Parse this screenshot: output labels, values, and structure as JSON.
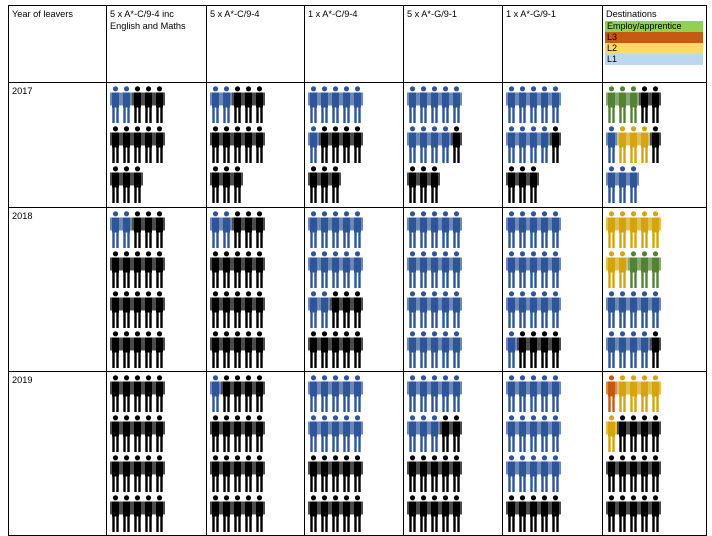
{
  "colors": {
    "blue": "#2e5597",
    "black": "#000000",
    "green": "#548235",
    "orange": "#c45a11",
    "gold": "#d4a40c"
  },
  "table": {
    "header": {
      "year": "Year of leavers",
      "columns": [
        "5 x A*-C/9-4 inc English and Maths",
        "5 x A*-C/9-4",
        "1 x A*-C/9-4",
        "5 x A*-G/9-1",
        "1 x A*-G/9-1"
      ],
      "destinations": {
        "title": "Destinations",
        "legend": [
          {
            "label": "Employ/apprentice",
            "color": "#92d050"
          },
          {
            "label": "L3",
            "color": "#c55a11"
          },
          {
            "label": "L2",
            "color": "#ffd966"
          },
          {
            "label": "L1",
            "color": "#bdd7ee"
          }
        ]
      }
    },
    "years": [
      {
        "year": "2017",
        "columns": [
          {
            "rows": [
              [
                "blue",
                "blue",
                "black",
                "black",
                "black"
              ],
              [
                "black",
                "black",
                "black",
                "black",
                "black"
              ],
              [
                "black",
                "black",
                "black"
              ]
            ]
          },
          {
            "rows": [
              [
                "blue",
                "blue",
                "black",
                "black",
                "black"
              ],
              [
                "black",
                "black",
                "black",
                "black",
                "black"
              ],
              [
                "black",
                "black",
                "black"
              ]
            ]
          },
          {
            "rows": [
              [
                "blue",
                "blue",
                "blue",
                "blue",
                "blue"
              ],
              [
                "blue",
                "black",
                "black",
                "black",
                "black"
              ],
              [
                "black",
                "black",
                "black"
              ]
            ]
          },
          {
            "rows": [
              [
                "blue",
                "blue",
                "blue",
                "blue",
                "blue"
              ],
              [
                "blue",
                "blue",
                "blue",
                "blue",
                "black"
              ],
              [
                "black",
                "black",
                "black"
              ]
            ]
          },
          {
            "rows": [
              [
                "blue",
                "blue",
                "blue",
                "blue",
                "blue"
              ],
              [
                "blue",
                "blue",
                "blue",
                "blue",
                "black"
              ],
              [
                "black",
                "black",
                "black"
              ]
            ]
          },
          {
            "rows": [
              [
                "green",
                "green",
                "green",
                "black",
                "black"
              ],
              [
                "blue",
                "gold",
                "gold",
                "gold",
                "black"
              ],
              [
                "blue",
                "blue",
                "blue"
              ]
            ]
          }
        ]
      },
      {
        "year": "2018",
        "columns": [
          {
            "rows": [
              [
                "blue",
                "blue",
                "black",
                "black",
                "black"
              ],
              [
                "black",
                "black",
                "black",
                "black",
                "black"
              ],
              [
                "black",
                "black",
                "black",
                "black",
                "black"
              ],
              [
                "black",
                "black",
                "black",
                "black",
                "black"
              ]
            ]
          },
          {
            "rows": [
              [
                "blue",
                "blue",
                "black",
                "black",
                "black"
              ],
              [
                "black",
                "black",
                "black",
                "black",
                "black"
              ],
              [
                "black",
                "black",
                "black",
                "black",
                "black"
              ],
              [
                "black",
                "black",
                "black",
                "black",
                "black"
              ]
            ]
          },
          {
            "rows": [
              [
                "blue",
                "blue",
                "blue",
                "blue",
                "blue"
              ],
              [
                "blue",
                "blue",
                "blue",
                "blue",
                "blue"
              ],
              [
                "blue",
                "blue",
                "black",
                "black",
                "black"
              ],
              [
                "black",
                "black",
                "black",
                "black",
                "black"
              ]
            ]
          },
          {
            "rows": [
              [
                "blue",
                "blue",
                "blue",
                "blue",
                "blue"
              ],
              [
                "blue",
                "blue",
                "blue",
                "blue",
                "blue"
              ],
              [
                "blue",
                "blue",
                "blue",
                "blue",
                "blue"
              ],
              [
                "blue",
                "blue",
                "blue",
                "blue",
                "blue"
              ]
            ]
          },
          {
            "rows": [
              [
                "blue",
                "blue",
                "blue",
                "blue",
                "blue"
              ],
              [
                "blue",
                "blue",
                "blue",
                "blue",
                "blue"
              ],
              [
                "blue",
                "blue",
                "blue",
                "blue",
                "blue"
              ],
              [
                "blue",
                "black",
                "black",
                "black",
                "black"
              ]
            ]
          },
          {
            "rows": [
              [
                "gold",
                "gold",
                "gold",
                "gold",
                "gold"
              ],
              [
                "gold",
                "gold",
                "green",
                "green",
                "green"
              ],
              [
                "blue",
                "blue",
                "blue",
                "blue",
                "blue"
              ],
              [
                "blue",
                "blue",
                "blue",
                "blue",
                "black"
              ]
            ]
          }
        ]
      },
      {
        "year": "2019",
        "columns": [
          {
            "rows": [
              [
                "black",
                "black",
                "black",
                "black",
                "black"
              ],
              [
                "black",
                "black",
                "black",
                "black",
                "black"
              ],
              [
                "black",
                "black",
                "black",
                "black",
                "black"
              ],
              [
                "black",
                "black",
                "black",
                "black",
                "black"
              ]
            ]
          },
          {
            "rows": [
              [
                "blue",
                "black",
                "black",
                "black",
                "black"
              ],
              [
                "black",
                "black",
                "black",
                "black",
                "black"
              ],
              [
                "black",
                "black",
                "black",
                "black",
                "black"
              ],
              [
                "black",
                "black",
                "black",
                "black",
                "black"
              ]
            ]
          },
          {
            "rows": [
              [
                "blue",
                "blue",
                "blue",
                "blue",
                "blue"
              ],
              [
                "blue",
                "blue",
                "blue",
                "blue",
                "blue"
              ],
              [
                "black",
                "black",
                "black",
                "black",
                "black"
              ],
              [
                "black",
                "black",
                "black",
                "black",
                "black"
              ]
            ]
          },
          {
            "rows": [
              [
                "blue",
                "blue",
                "blue",
                "blue",
                "blue"
              ],
              [
                "blue",
                "blue",
                "blue",
                "black",
                "black"
              ],
              [
                "black",
                "black",
                "black",
                "black",
                "black"
              ],
              [
                "black",
                "black",
                "black",
                "black",
                "black"
              ]
            ]
          },
          {
            "rows": [
              [
                "blue",
                "blue",
                "blue",
                "blue",
                "blue"
              ],
              [
                "blue",
                "blue",
                "blue",
                "blue",
                "blue"
              ],
              [
                "blue",
                "blue",
                "blue",
                "blue",
                "blue"
              ],
              [
                "black",
                "black",
                "black",
                "black",
                "black"
              ]
            ]
          },
          {
            "rows": [
              [
                "orange",
                "gold",
                "gold",
                "gold",
                "gold"
              ],
              [
                "gold",
                "black",
                "black",
                "black",
                "black"
              ],
              [
                "black",
                "black",
                "black",
                "black",
                "black"
              ],
              [
                "black",
                "black",
                "black",
                "black",
                "black"
              ]
            ]
          }
        ]
      }
    ]
  }
}
